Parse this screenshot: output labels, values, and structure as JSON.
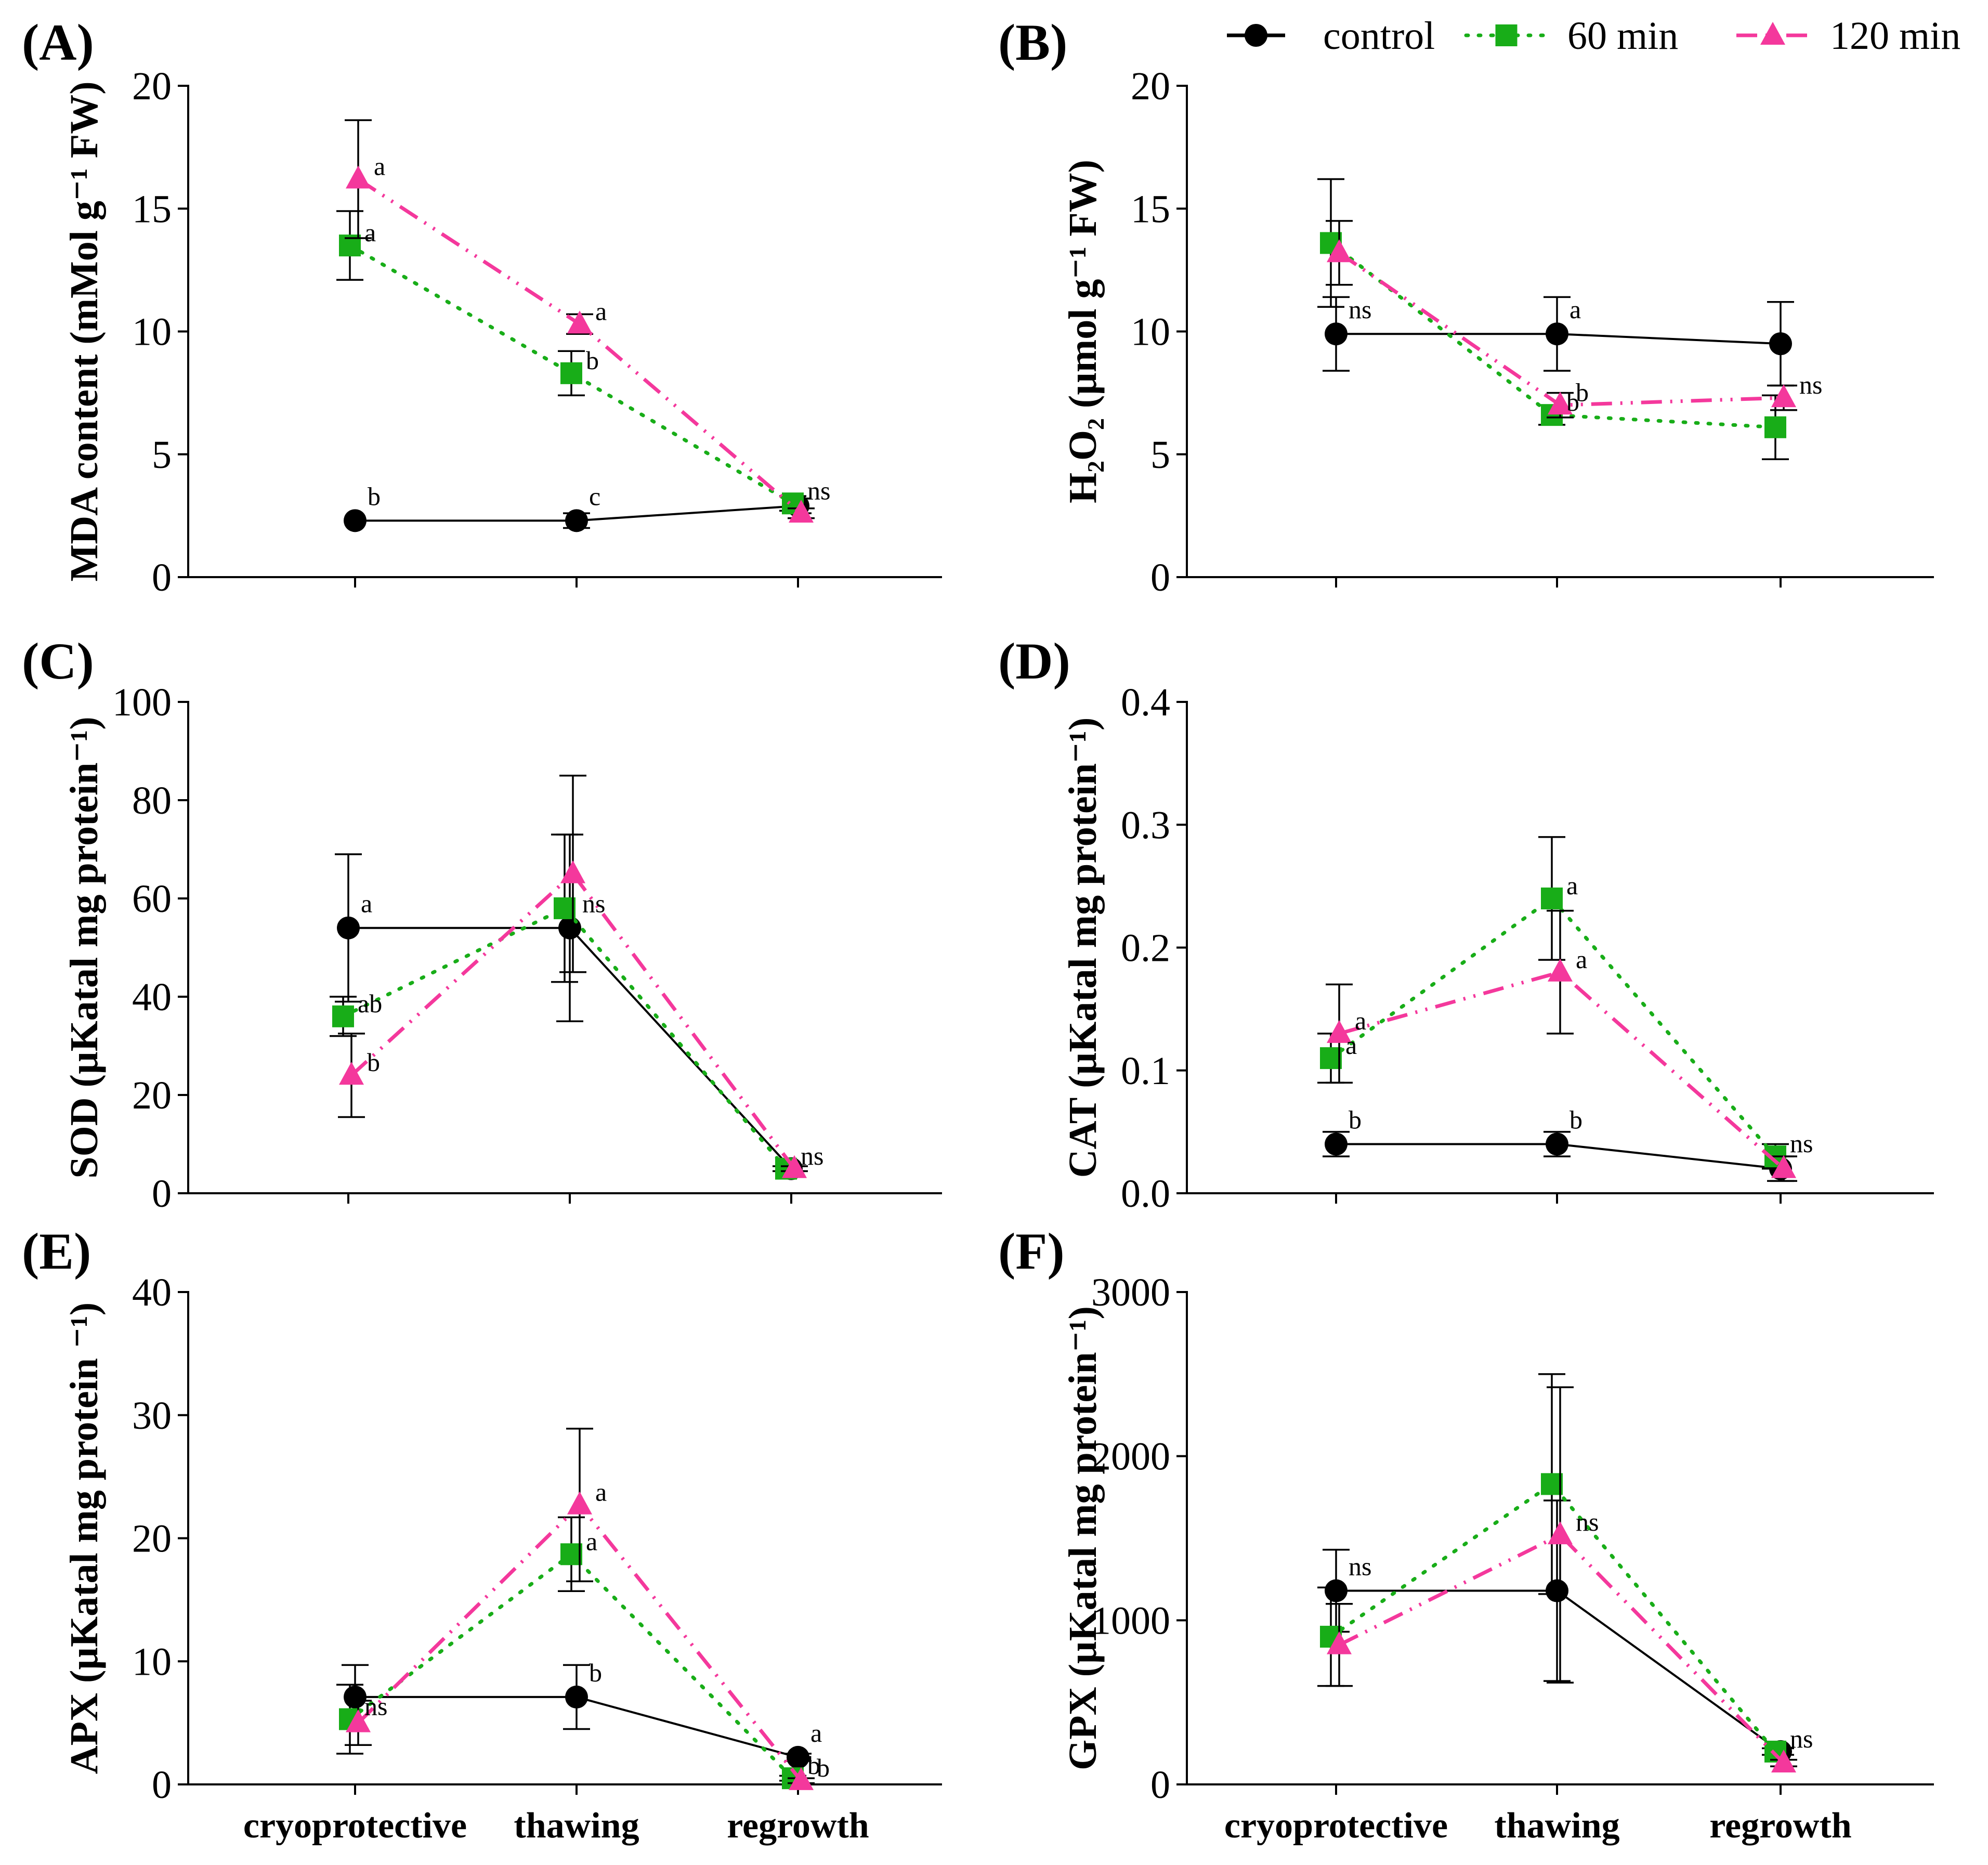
{
  "legend": [
    {
      "key": "control",
      "label": "control",
      "color": "#000000",
      "marker": "circle",
      "dash": ""
    },
    {
      "key": "min60",
      "label": "60 min",
      "color": "#18ad18",
      "marker": "square",
      "dash": "4 20"
    },
    {
      "key": "min120",
      "label": "120 min",
      "color": "#f4389c",
      "marker": "triangle",
      "dash": "40 16 4 16 4 16"
    }
  ],
  "chart_data": [
    {
      "type": "line",
      "panel": "(A)",
      "ylabel": "MDA content (mMol g⁻¹ FW)",
      "ylim": [
        0,
        20
      ],
      "yticks": [
        0,
        5,
        10,
        15,
        20
      ],
      "categories": [
        "cryoprotective",
        "thawing",
        "regrowth"
      ],
      "show_category_labels": false,
      "series": [
        {
          "name": "control",
          "values": [
            2.3,
            2.3,
            2.9
          ],
          "errors": [
            0,
            0.3,
            0.3
          ]
        },
        {
          "name": "60 min",
          "values": [
            13.5,
            8.3,
            3.0
          ],
          "errors": [
            1.4,
            0.9,
            0.3
          ]
        },
        {
          "name": "120 min",
          "values": [
            16.2,
            10.3,
            2.6
          ],
          "errors": [
            2.4,
            0.4,
            0.2
          ]
        }
      ],
      "annotations": [
        {
          "series": "control",
          "index": 0,
          "text": "b"
        },
        {
          "series": "control",
          "index": 1,
          "text": "c"
        },
        {
          "series": "60 min",
          "index": 0,
          "text": "a"
        },
        {
          "series": "60 min",
          "index": 1,
          "text": "b"
        },
        {
          "series": "120 min",
          "index": 0,
          "text": "a"
        },
        {
          "series": "120 min",
          "index": 1,
          "text": "a"
        },
        {
          "series": "60 min",
          "index": 2,
          "text": "ns"
        }
      ]
    },
    {
      "type": "line",
      "panel": "(B)",
      "ylabel": "H₂O₂ (µmol g⁻¹ FW)",
      "ylim": [
        0,
        20
      ],
      "yticks": [
        0,
        5,
        10,
        15,
        20
      ],
      "categories": [
        "cryoprotective",
        "thawing",
        "regrowth"
      ],
      "show_category_labels": false,
      "series": [
        {
          "name": "control",
          "values": [
            9.9,
            9.9,
            9.5
          ],
          "errors": [
            1.5,
            1.5,
            1.7
          ]
        },
        {
          "name": "60 min",
          "values": [
            13.6,
            6.6,
            6.1
          ],
          "errors": [
            2.6,
            0.4,
            1.3
          ]
        },
        {
          "name": "120 min",
          "values": [
            13.2,
            7.0,
            7.3
          ],
          "errors": [
            1.3,
            0.5,
            0.5
          ]
        }
      ],
      "annotations": [
        {
          "series": "control",
          "index": 0,
          "text": "ns"
        },
        {
          "series": "control",
          "index": 1,
          "text": "a"
        },
        {
          "series": "120 min",
          "index": 1,
          "text": "b"
        },
        {
          "series": "60 min",
          "index": 1,
          "text": "b"
        },
        {
          "series": "120 min",
          "index": 2,
          "text": "ns"
        }
      ]
    },
    {
      "type": "line",
      "panel": "(C)",
      "ylabel": "SOD (µKatal mg protein⁻¹)",
      "ylim": [
        0,
        100
      ],
      "yticks": [
        0,
        20,
        40,
        60,
        80,
        100
      ],
      "categories": [
        "cryoprotective",
        "thawing",
        "regrowth"
      ],
      "show_category_labels": false,
      "series": [
        {
          "name": "control",
          "values": [
            54,
            54,
            5
          ],
          "errors": [
            15,
            19,
            0.5
          ]
        },
        {
          "name": "60 min",
          "values": [
            36,
            58,
            5
          ],
          "errors": [
            4,
            15,
            0.5
          ]
        },
        {
          "name": "120 min",
          "values": [
            24,
            65,
            5
          ],
          "errors": [
            8.5,
            20,
            0.5
          ]
        }
      ],
      "annotations": [
        {
          "series": "control",
          "index": 0,
          "text": "a"
        },
        {
          "series": "60 min",
          "index": 0,
          "text": "ab"
        },
        {
          "series": "120 min",
          "index": 0,
          "text": "b"
        },
        {
          "series": "control",
          "index": 1,
          "text": "ns"
        },
        {
          "series": "60 min",
          "index": 2,
          "text": "ns"
        }
      ]
    },
    {
      "type": "line",
      "panel": "(D)",
      "ylabel": "CAT (µKatal mg protein⁻¹)",
      "ylim": [
        0,
        0.4
      ],
      "yticks": [
        0.0,
        0.1,
        0.2,
        0.3,
        0.4
      ],
      "ytick_labels": [
        "0.0",
        "0.1",
        "0.2",
        "0.3",
        "0.4"
      ],
      "categories": [
        "cryoprotective",
        "thawing",
        "regrowth"
      ],
      "show_category_labels": false,
      "series": [
        {
          "name": "control",
          "values": [
            0.04,
            0.04,
            0.02
          ],
          "errors": [
            0.01,
            0.01,
            0.01
          ]
        },
        {
          "name": "60 min",
          "values": [
            0.11,
            0.24,
            0.03
          ],
          "errors": [
            0.02,
            0.05,
            0.01
          ]
        },
        {
          "name": "120 min",
          "values": [
            0.13,
            0.18,
            0.02
          ],
          "errors": [
            0.04,
            0.05,
            0.01
          ]
        }
      ],
      "annotations": [
        {
          "series": "120 min",
          "index": 0,
          "text": "a"
        },
        {
          "series": "60 min",
          "index": 0,
          "text": "a"
        },
        {
          "series": "60 min",
          "index": 1,
          "text": "a"
        },
        {
          "series": "120 min",
          "index": 1,
          "text": "a"
        },
        {
          "series": "control",
          "index": 0,
          "text": "b"
        },
        {
          "series": "control",
          "index": 1,
          "text": "b"
        },
        {
          "series": "60 min",
          "index": 2,
          "text": "ns"
        }
      ]
    },
    {
      "type": "line",
      "panel": "(E)",
      "ylabel": "APX (µKatal mg protein ⁻¹)",
      "ylim": [
        0,
        40
      ],
      "yticks": [
        0,
        10,
        20,
        30,
        40
      ],
      "categories": [
        "cryoprotective",
        "thawing",
        "regrowth"
      ],
      "show_category_labels": true,
      "series": [
        {
          "name": "control",
          "values": [
            7.1,
            7.1,
            2.2
          ],
          "errors": [
            2.6,
            2.6,
            0.3
          ]
        },
        {
          "name": "60 min",
          "values": [
            5.3,
            18.7,
            0.5
          ],
          "errors": [
            2.8,
            3.0,
            0.2
          ]
        },
        {
          "name": "120 min",
          "values": [
            5.0,
            22.7,
            0.3
          ],
          "errors": [
            1.8,
            6.2,
            0.2
          ]
        }
      ],
      "annotations": [
        {
          "series": "60 min",
          "index": 0,
          "text": "ns"
        },
        {
          "series": "120 min",
          "index": 1,
          "text": "a"
        },
        {
          "series": "60 min",
          "index": 1,
          "text": "a"
        },
        {
          "series": "control",
          "index": 1,
          "text": "b"
        },
        {
          "series": "control",
          "index": 2,
          "text": "a"
        },
        {
          "series": "60 min",
          "index": 2,
          "text": "b"
        },
        {
          "series": "120 min",
          "index": 2,
          "text": "b"
        }
      ]
    },
    {
      "type": "line",
      "panel": "(F)",
      "ylabel": "GPX (µKatal mg protein⁻¹)",
      "ylim": [
        0,
        3000
      ],
      "yticks": [
        0,
        1000,
        2000,
        3000
      ],
      "categories": [
        "cryoprotective",
        "thawing",
        "regrowth"
      ],
      "show_category_labels": true,
      "series": [
        {
          "name": "control",
          "values": [
            1180,
            1180,
            200
          ],
          "errors": [
            250,
            550,
            20
          ]
        },
        {
          "name": "60 min",
          "values": [
            900,
            1830,
            200
          ],
          "errors": [
            300,
            670,
            20
          ]
        },
        {
          "name": "120 min",
          "values": [
            850,
            1520,
            130
          ],
          "errors": [
            250,
            900,
            20
          ]
        }
      ],
      "annotations": [
        {
          "series": "control",
          "index": 0,
          "text": "ns"
        },
        {
          "series": "120 min",
          "index": 1,
          "text": "ns"
        },
        {
          "series": "60 min",
          "index": 2,
          "text": "ns"
        }
      ]
    }
  ]
}
